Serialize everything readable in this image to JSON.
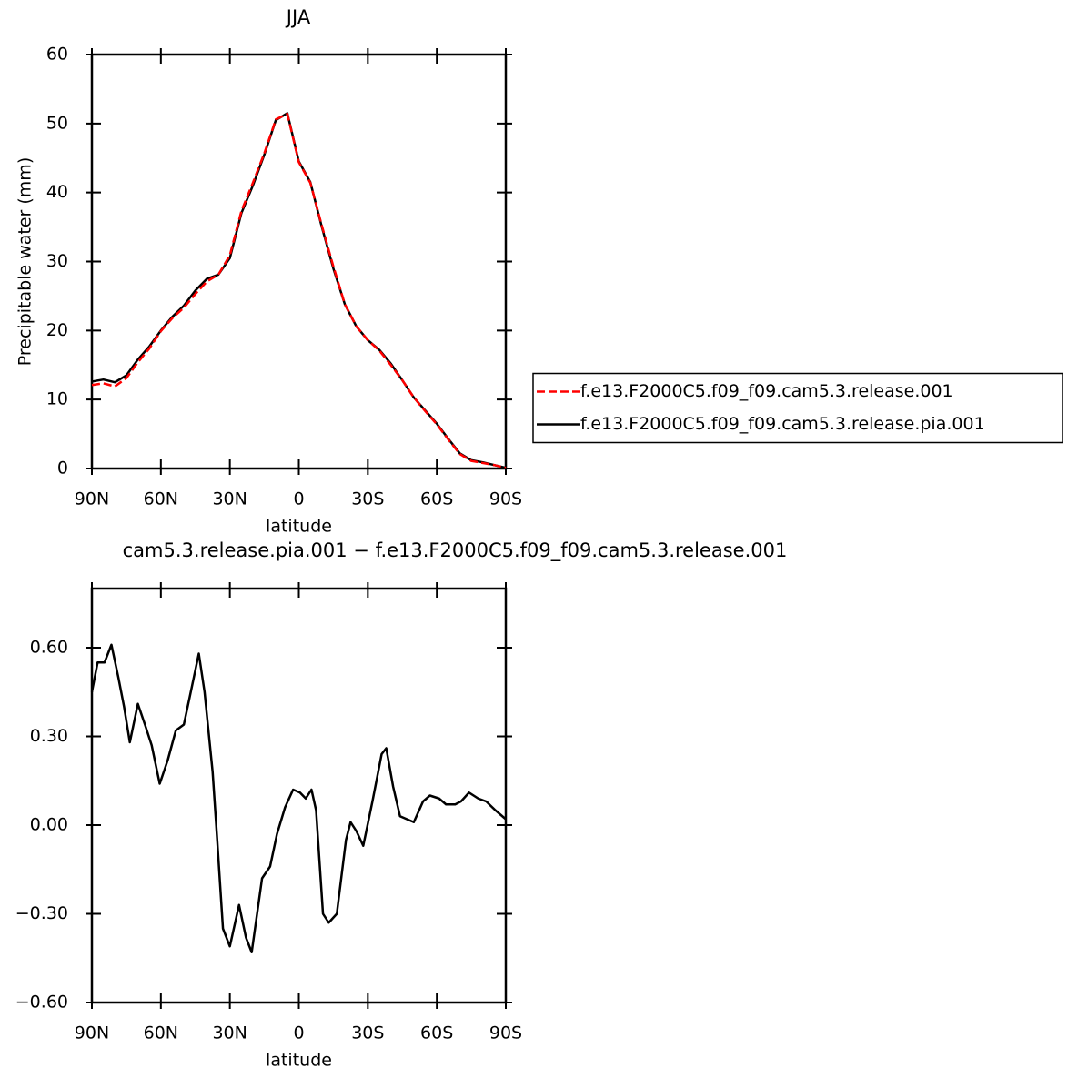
{
  "chart_data": [
    {
      "type": "line",
      "title": "JJA",
      "ylabel": "Precipitable water (mm)",
      "xlabel": "latitude",
      "x": [
        90,
        85,
        80,
        75,
        70,
        65,
        60,
        55,
        50,
        45,
        40,
        35,
        30,
        25,
        20,
        15,
        10,
        5,
        0,
        -5,
        -10,
        -15,
        -20,
        -25,
        -30,
        -35,
        -40,
        -45,
        -50,
        -55,
        -60,
        -65,
        -70,
        -75,
        -80,
        -85,
        -90
      ],
      "series": [
        {
          "name": "f.e13.F2000C5.f09_f09.cam5.3.release.001",
          "color": "#ff0000",
          "linestyle": "dashed",
          "values": [
            12.1,
            12.35,
            11.9,
            13.1,
            15.4,
            17.4,
            19.9,
            21.8,
            23.3,
            25.3,
            27.1,
            28.1,
            30.9,
            37.3,
            41.4,
            45.7,
            50.6,
            51.4,
            44.4,
            41.4,
            35.2,
            29.3,
            23.8,
            20.6,
            18.6,
            17.1,
            15.0,
            12.8,
            10.3,
            8.3,
            6.4,
            4.2,
            2.1,
            1.1,
            0.8,
            0.5,
            0.1
          ]
        },
        {
          "name": "f.e13.F2000C5.f09_f09.cam5.3.release.pia.001",
          "color": "#000000",
          "linestyle": "solid",
          "values": [
            12.6,
            12.9,
            12.5,
            13.5,
            15.8,
            17.7,
            20.0,
            22.0,
            23.6,
            25.8,
            27.5,
            28.1,
            30.5,
            37.0,
            41.0,
            45.5,
            50.5,
            51.5,
            44.5,
            41.5,
            35.0,
            29.0,
            23.8,
            20.6,
            18.6,
            17.2,
            15.2,
            12.8,
            10.3,
            8.4,
            6.5,
            4.3,
            2.2,
            1.2,
            0.9,
            0.5,
            0.1
          ]
        }
      ],
      "xlim": [
        90,
        -90
      ],
      "xticks": [
        {
          "value": 90,
          "label": "90N"
        },
        {
          "value": 60,
          "label": "60N"
        },
        {
          "value": 30,
          "label": "30N"
        },
        0,
        {
          "value": -30,
          "label": "30S"
        },
        {
          "value": -60,
          "label": "60S"
        },
        {
          "value": -90,
          "label": "90S"
        }
      ],
      "ylim": [
        0,
        60
      ],
      "yticks": [
        0,
        10,
        20,
        30,
        40,
        50,
        60
      ],
      "legend": "right"
    },
    {
      "type": "line",
      "title": "cam5.3.release.pia.001 − f.e13.F2000C5.f09_f09.cam5.3.release.001",
      "xlabel": "latitude",
      "color": "#000000",
      "x": [
        90,
        87.5,
        84.5,
        81.5,
        78.5,
        76,
        73.5,
        70,
        66.5,
        64,
        60.5,
        57,
        53.5,
        50,
        47,
        43.5,
        41,
        37.5,
        35.5,
        33,
        30,
        26,
        23,
        20.5,
        16,
        12.5,
        9.5,
        6,
        2.5,
        -0.5,
        -3,
        -5.5,
        -7.5,
        -10.5,
        -13,
        -16.5,
        -20.5,
        -22.5,
        -25,
        -28,
        -32,
        -36,
        -38,
        -41,
        -44,
        -50,
        -54,
        -57,
        -61,
        -64,
        -68,
        -70.5,
        -74,
        -78,
        -81.5,
        -85.5,
        -90
      ],
      "values": [
        0.45,
        0.55,
        0.55,
        0.61,
        0.5,
        0.4,
        0.28,
        0.41,
        0.33,
        0.27,
        0.14,
        0.22,
        0.32,
        0.34,
        0.45,
        0.58,
        0.45,
        0.18,
        -0.05,
        -0.35,
        -0.41,
        -0.27,
        -0.38,
        -0.43,
        -0.18,
        -0.14,
        -0.03,
        0.06,
        0.12,
        0.11,
        0.09,
        0.12,
        0.05,
        -0.3,
        -0.33,
        -0.3,
        -0.05,
        0.01,
        -0.02,
        -0.07,
        0.08,
        0.24,
        0.26,
        0.13,
        0.03,
        0.01,
        0.08,
        0.1,
        0.09,
        0.07,
        0.07,
        0.08,
        0.11,
        0.09,
        0.08,
        0.05,
        0.02
      ],
      "xlim": [
        90,
        -90
      ],
      "xticks": [
        {
          "value": 90,
          "label": "90N"
        },
        {
          "value": 60,
          "label": "60N"
        },
        {
          "value": 30,
          "label": "30N"
        },
        0,
        {
          "value": -30,
          "label": "30S"
        },
        {
          "value": -60,
          "label": "60S"
        },
        {
          "value": -90,
          "label": "90S"
        }
      ],
      "ylim": [
        -0.6,
        0.8
      ],
      "yticks": [
        {
          "value": -0.6,
          "label": "−0.60"
        },
        {
          "value": -0.3,
          "label": "−0.30"
        },
        {
          "value": 0,
          "label": "0.00"
        },
        {
          "value": 0.3,
          "label": "0.30"
        },
        {
          "value": 0.6,
          "label": "0.60"
        }
      ]
    }
  ]
}
